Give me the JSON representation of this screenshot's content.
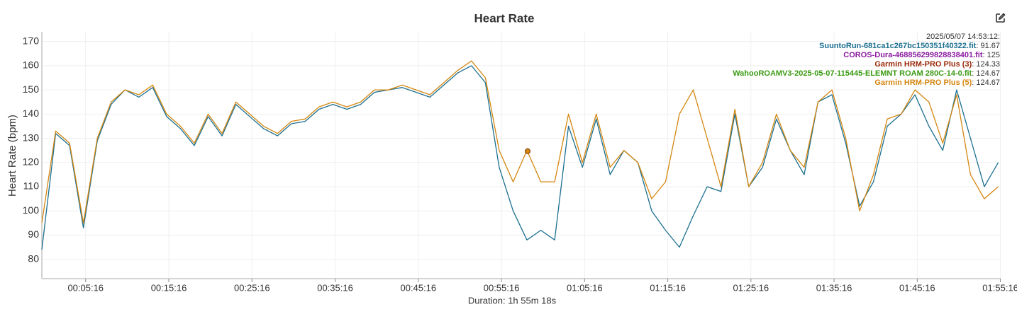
{
  "chart_data": {
    "type": "line",
    "title": "Heart Rate",
    "ylabel": "Heart Rate (bpm)",
    "xlabel": "Duration: 1h 55m 18s",
    "xlim": [
      0,
      6918
    ],
    "ylim": [
      72,
      174
    ],
    "yticks": [
      80,
      90,
      100,
      110,
      120,
      130,
      140,
      150,
      160,
      170
    ],
    "xticks": [
      {
        "value": 316,
        "label": "00:05:16"
      },
      {
        "value": 916,
        "label": "00:15:16"
      },
      {
        "value": 1516,
        "label": "00:25:16"
      },
      {
        "value": 2116,
        "label": "00:35:16"
      },
      {
        "value": 2716,
        "label": "00:45:16"
      },
      {
        "value": 3316,
        "label": "00:55:16"
      },
      {
        "value": 3916,
        "label": "01:05:16"
      },
      {
        "value": 4516,
        "label": "01:15:16"
      },
      {
        "value": 5116,
        "label": "01:25:16"
      },
      {
        "value": 5716,
        "label": "01:35:16"
      },
      {
        "value": 6316,
        "label": "01:45:16"
      },
      {
        "value": 6916,
        "label": "01:55:16"
      }
    ],
    "grid": true,
    "x": [
      0,
      100,
      200,
      300,
      400,
      500,
      600,
      700,
      800,
      900,
      1000,
      1100,
      1200,
      1300,
      1400,
      1500,
      1600,
      1700,
      1800,
      1900,
      2000,
      2100,
      2200,
      2300,
      2400,
      2500,
      2600,
      2700,
      2800,
      2900,
      3000,
      3100,
      3200,
      3300,
      3400,
      3500,
      3600,
      3700,
      3800,
      3900,
      4000,
      4100,
      4200,
      4300,
      4400,
      4500,
      4600,
      4700,
      4800,
      4900,
      5000,
      5100,
      5200,
      5300,
      5400,
      5500,
      5600,
      5700,
      5800,
      5900,
      6000,
      6100,
      6200,
      6300,
      6400,
      6500,
      6600,
      6700,
      6800,
      6900
    ],
    "series": [
      {
        "name": "SuuntoRun-681ca1c267bc150351f40322.fit",
        "color": "#1b6f8f",
        "values": [
          84,
          132,
          127,
          93,
          129,
          144,
          150,
          147,
          151,
          139,
          134,
          127,
          139,
          131,
          144,
          139,
          134,
          131,
          136,
          137,
          142,
          144,
          142,
          144,
          149,
          150,
          151,
          149,
          147,
          152,
          157,
          160,
          153,
          118,
          100,
          88,
          92,
          88,
          135,
          118,
          138,
          115,
          125,
          120,
          100,
          92,
          85,
          98,
          110,
          108,
          140,
          110,
          118,
          138,
          125,
          115,
          145,
          148,
          128,
          102,
          112,
          135,
          140,
          148,
          135,
          125,
          150,
          130,
          110,
          120
        ]
      },
      {
        "name": "Garmin HRM-PRO Plus (5)",
        "color": "#d4860f",
        "values": [
          95,
          133,
          128,
          95,
          130,
          145,
          150,
          148,
          152,
          140,
          135,
          128,
          140,
          132,
          145,
          140,
          135,
          132,
          137,
          138,
          143,
          145,
          143,
          145,
          150,
          150,
          152,
          150,
          148,
          153,
          158,
          162,
          155,
          125,
          112,
          125,
          112,
          112,
          140,
          120,
          140,
          118,
          125,
          120,
          105,
          112,
          140,
          150,
          130,
          110,
          142,
          110,
          120,
          140,
          125,
          118,
          145,
          150,
          130,
          100,
          115,
          138,
          140,
          150,
          145,
          128,
          148,
          115,
          105,
          110
        ]
      }
    ],
    "tooltip": {
      "time": "2025/05/07 14:53:12:",
      "x": 3505,
      "entries": [
        {
          "name": "SuuntoRun-681ca1c267bc150351f40322.fit",
          "color": "#1b6f8f",
          "value": 91.67,
          "value_label": ": 91.67"
        },
        {
          "name": "COROS-Dura-468856299828838401.fit",
          "color": "#8a1aa0",
          "value": 125,
          "value_label": ": 125"
        },
        {
          "name": "Garmin HRM-PRO Plus (3)",
          "color": "#9a2a0a",
          "value": 124.33,
          "value_label": ": 124.33"
        },
        {
          "name": "WahooROAMV3-2025-05-07-115445-ELEMNT ROAM 280C-14-0.fit",
          "color": "#3a9a12",
          "value": 124.67,
          "value_label": ": 124.67"
        },
        {
          "name": "Garmin HRM-PRO Plus (5)",
          "color": "#d4860f",
          "value": 124.67,
          "value_label": ": 124.67"
        }
      ]
    }
  }
}
